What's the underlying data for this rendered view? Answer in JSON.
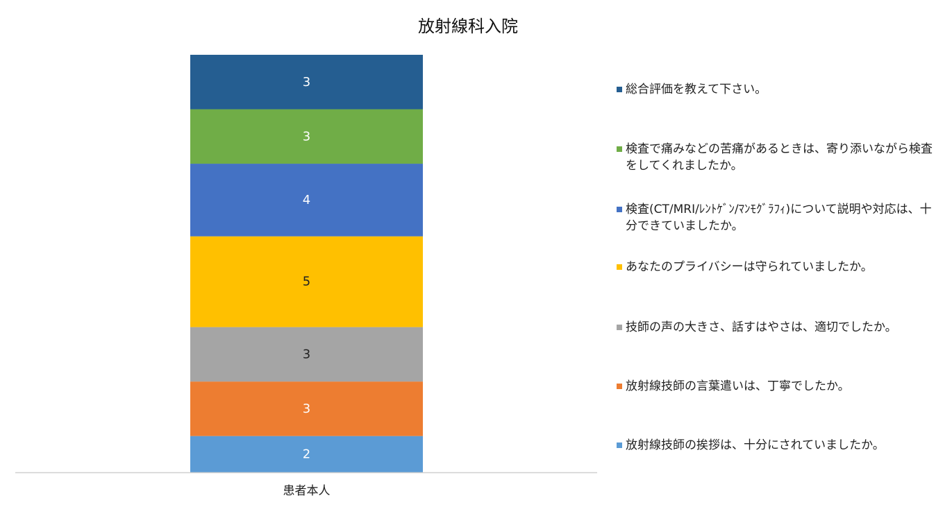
{
  "chart_data": {
    "type": "bar",
    "stacked": true,
    "title": "放射線科入院",
    "categories": [
      "患者本人"
    ],
    "ylim": [
      0,
      23
    ],
    "grid": false,
    "legend_position": "right",
    "series": [
      {
        "name": "放射線技師の挨拶は、十分にされていましたか。",
        "values": [
          2
        ],
        "color": "#5b9bd5",
        "label_color": "#ffffff"
      },
      {
        "name": "放射線技師の言葉遣いは、丁寧でしたか。",
        "values": [
          3
        ],
        "color": "#ed7d31",
        "label_color": "#ffffff"
      },
      {
        "name": "技師の声の大きさ、話すはやさは、適切でしたか。",
        "values": [
          3
        ],
        "color": "#a5a5a5",
        "label_color": "#222222"
      },
      {
        "name": "あなたのプライバシーは守られていましたか。",
        "values": [
          5
        ],
        "color": "#ffc000",
        "label_color": "#222222"
      },
      {
        "name": "検査(CT/MRI/ﾚﾝﾄｹﾞﾝ/ﾏﾝﾓｸﾞﾗﾌｨ)について説明や対応は、十分できていましたか。",
        "values": [
          4
        ],
        "color": "#4472c4",
        "label_color": "#ffffff"
      },
      {
        "name": "検査で痛みなどの苦痛があるときは、寄り添いながら検査をしてくれましたか。",
        "values": [
          3
        ],
        "color": "#70ad47",
        "label_color": "#ffffff"
      },
      {
        "name": "総合評価を教えて下さい。",
        "values": [
          3
        ],
        "color": "#255e91",
        "label_color": "#ffffff"
      }
    ]
  }
}
